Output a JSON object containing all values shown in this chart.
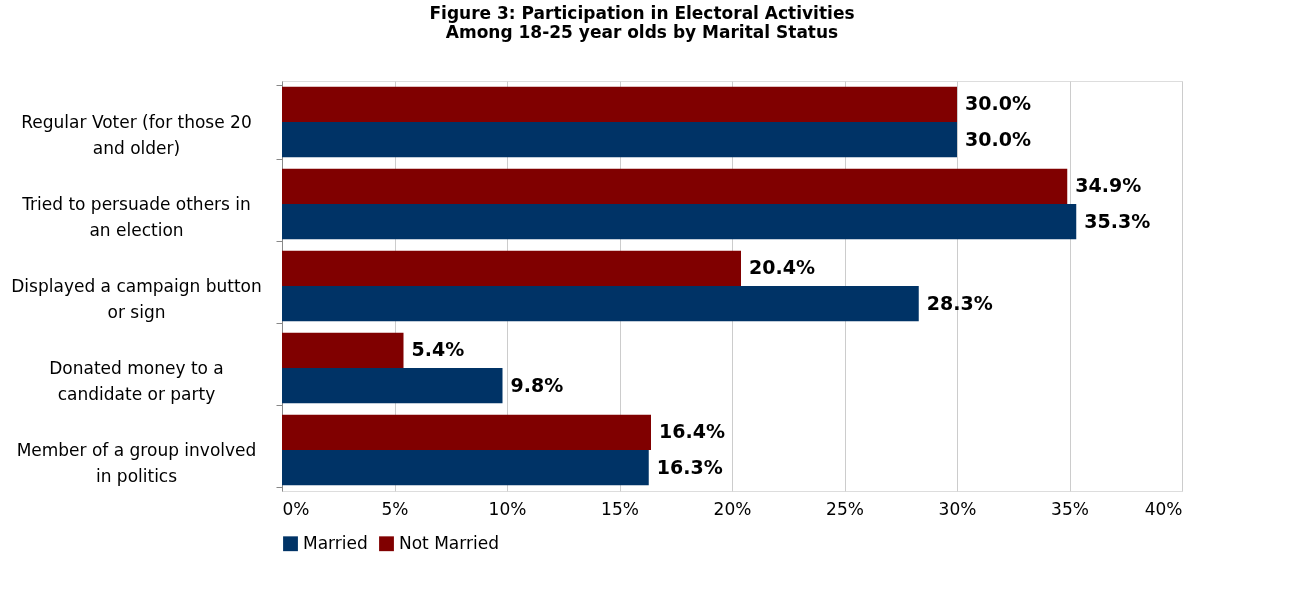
{
  "chart_data": {
    "type": "bar",
    "orientation": "horizontal",
    "title": "Figure 3: Participation in Electoral Activities\nAmong 18-25 year olds by Marital Status",
    "categories": [
      "Regular Voter (for those 20 and older)",
      "Tried to persuade others in an election",
      "Displayed a campaign button or sign",
      "Donated money to a candidate or party",
      "Member of a group involved in politics"
    ],
    "series": [
      {
        "name": "Married",
        "color": "#003366",
        "values": [
          30.0,
          35.3,
          28.3,
          9.8,
          16.3
        ],
        "value_labels": [
          "30.0%",
          "35.3%",
          "28.3%",
          "9.8%",
          "16.3%"
        ]
      },
      {
        "name": "Not Married",
        "color": "#800000",
        "values": [
          30.0,
          34.9,
          20.4,
          5.4,
          16.4
        ],
        "value_labels": [
          "30.0%",
          "34.9%",
          "20.4%",
          "5.4%",
          "16.4%"
        ]
      }
    ],
    "xlim": [
      0,
      40
    ],
    "xticks": [
      {
        "value": 0,
        "label": "0%"
      },
      {
        "value": 5,
        "label": "5%"
      },
      {
        "value": 10,
        "label": "10%"
      },
      {
        "value": 15,
        "label": "15%"
      },
      {
        "value": 20,
        "label": "20%"
      },
      {
        "value": 25,
        "label": "25%"
      },
      {
        "value": 30,
        "label": "30%"
      },
      {
        "value": 35,
        "label": "35%"
      },
      {
        "value": 40,
        "label": "40%"
      }
    ],
    "grid": "x",
    "legend": "bottom"
  }
}
